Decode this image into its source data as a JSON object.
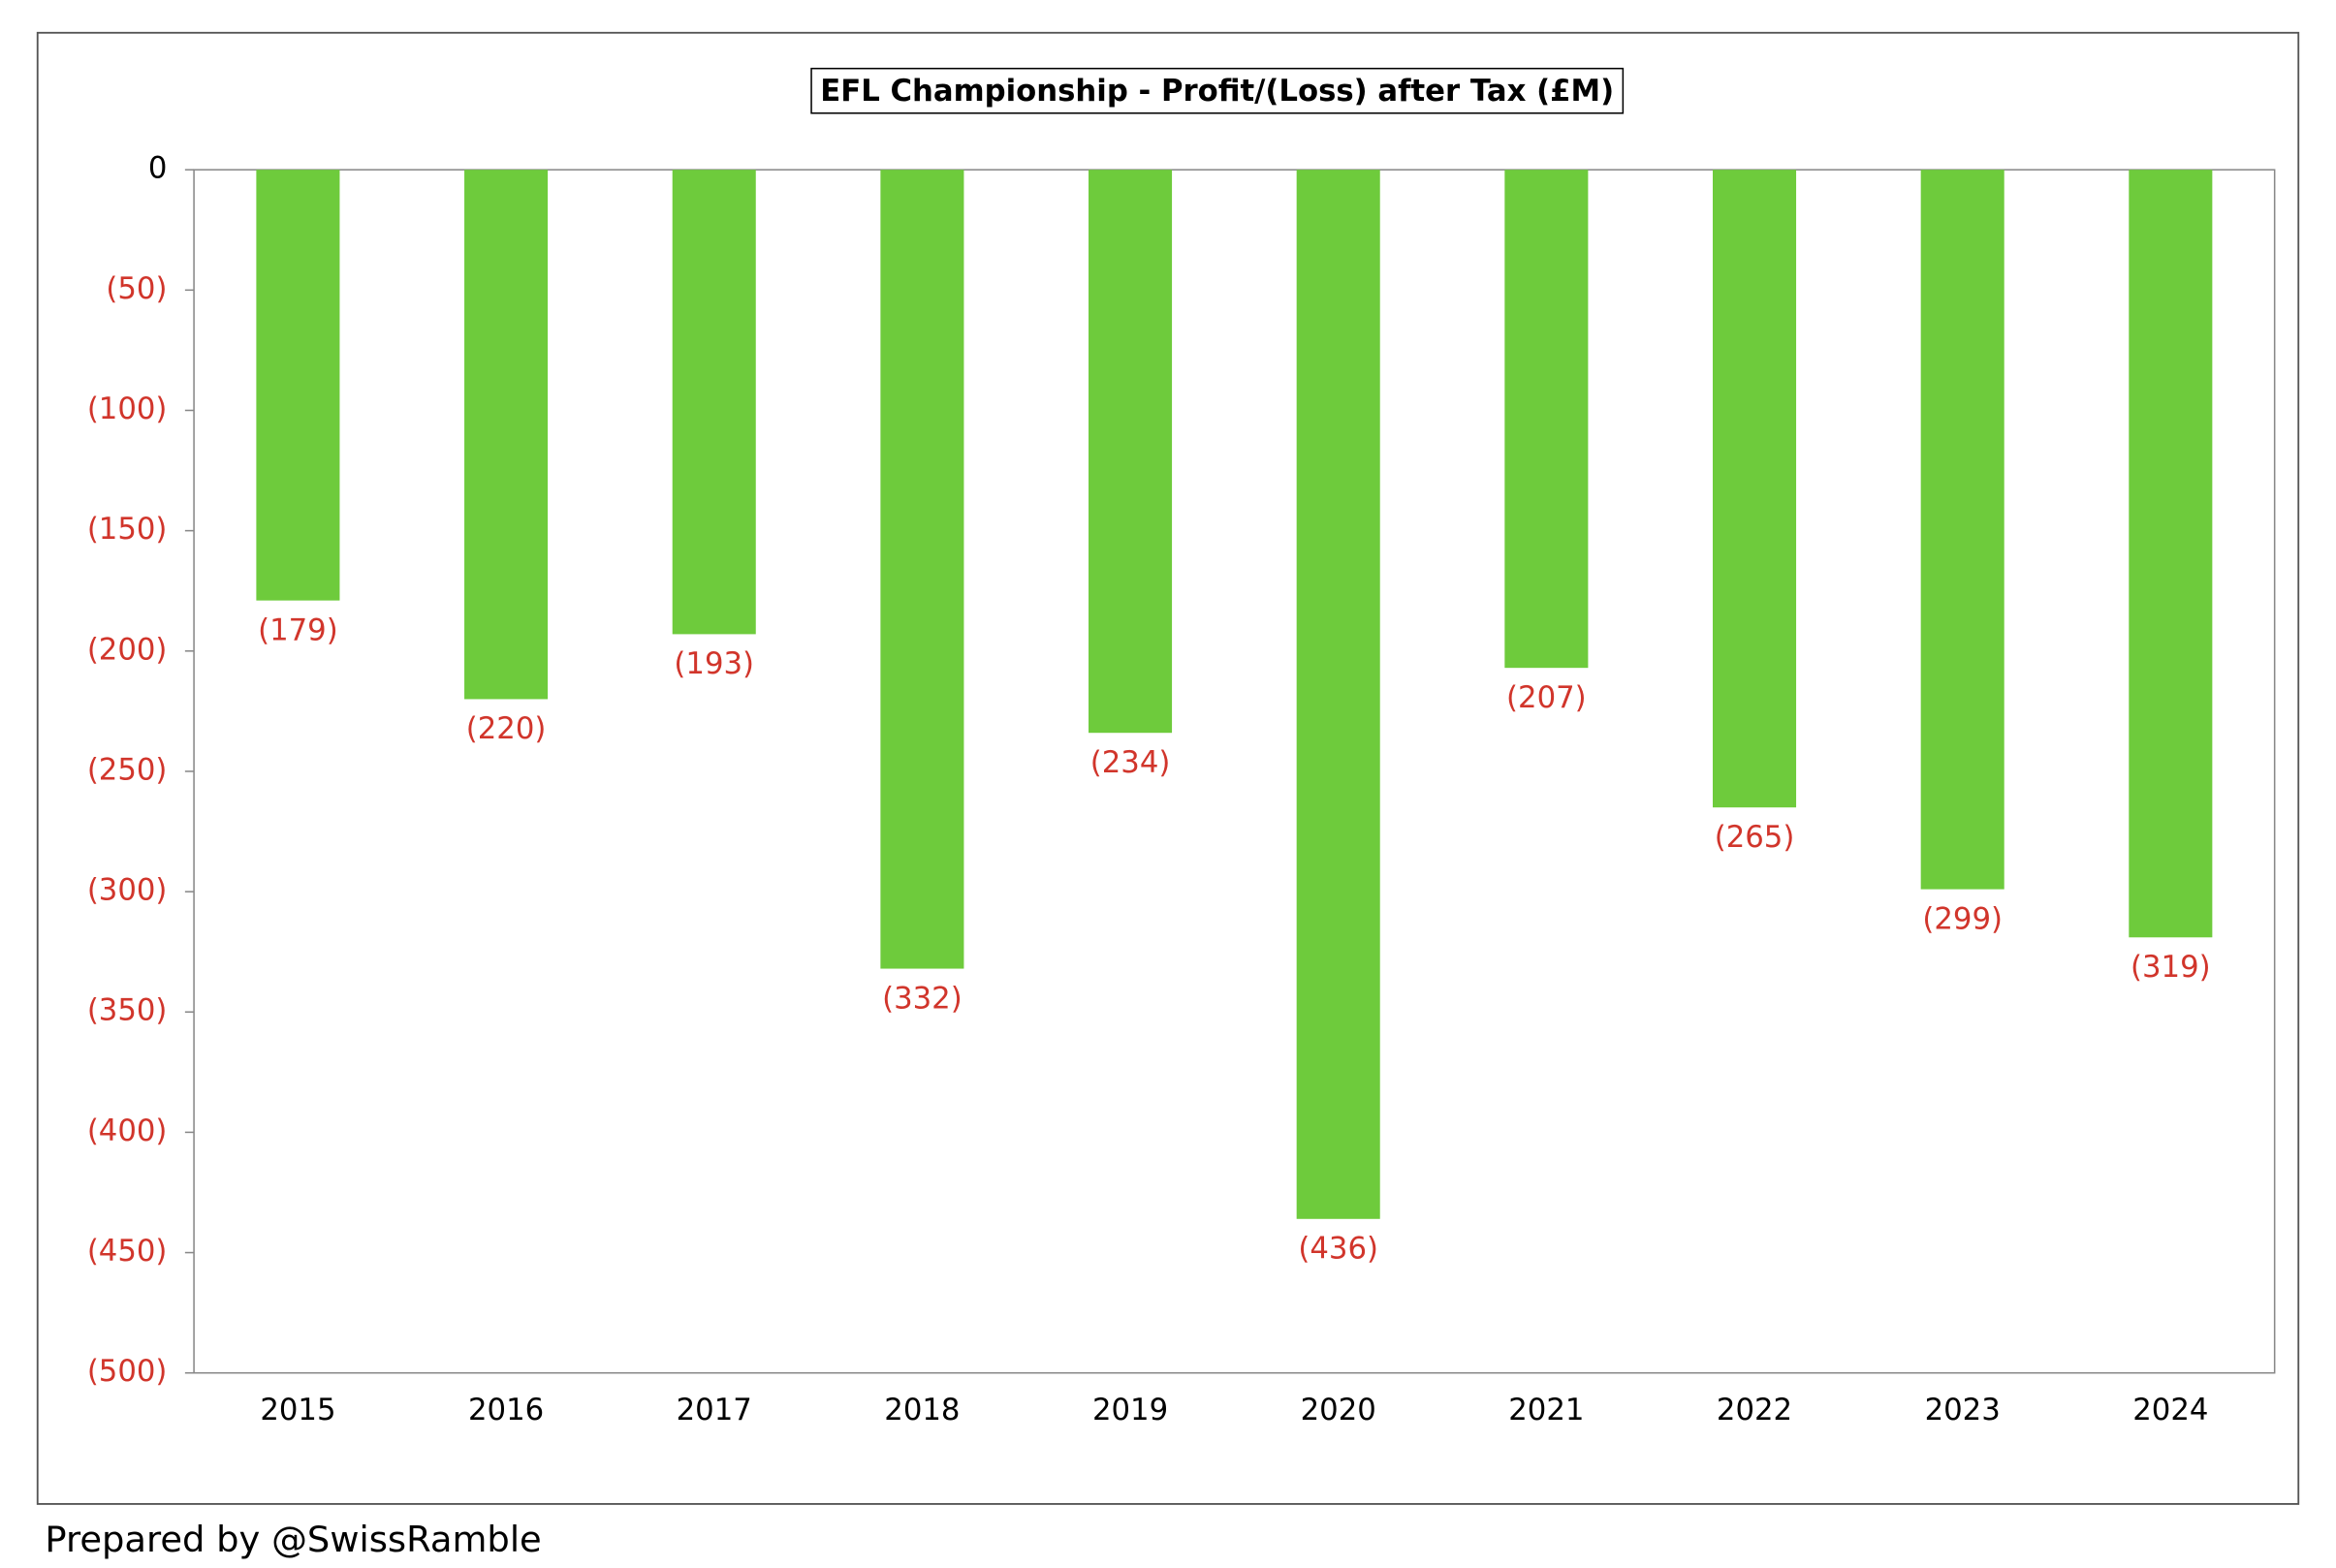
{
  "chart_data": {
    "type": "bar",
    "title": "EFL Championship - Profit/(Loss) after Tax (£M)",
    "categories": [
      "2015",
      "2016",
      "2017",
      "2018",
      "2019",
      "2020",
      "2021",
      "2022",
      "2023",
      "2024"
    ],
    "values": [
      -179,
      -220,
      -193,
      -332,
      -234,
      -436,
      -207,
      -265,
      -299,
      -319
    ],
    "value_labels": [
      "(179)",
      "(220)",
      "(193)",
      "(332)",
      "(234)",
      "(436)",
      "(207)",
      "(265)",
      "(299)",
      "(319)"
    ],
    "color": "#6ecb3c",
    "negative_color": "#d1352b",
    "ylim": [
      -500,
      0
    ],
    "yticks": [
      0,
      {
        "value": -50,
        "label": "(50)"
      },
      {
        "value": -100,
        "label": "(100)"
      },
      {
        "value": -150,
        "label": "(150)"
      },
      {
        "value": -200,
        "label": "(200)"
      },
      {
        "value": -250,
        "label": "(250)"
      },
      {
        "value": -300,
        "label": "(300)"
      },
      {
        "value": -350,
        "label": "(350)"
      },
      {
        "value": -400,
        "label": "(400)"
      },
      {
        "value": -450,
        "label": "(450)"
      },
      {
        "value": -500,
        "label": "(500)"
      }
    ],
    "grid": false,
    "footer": "Prepared by @SwissRamble"
  }
}
